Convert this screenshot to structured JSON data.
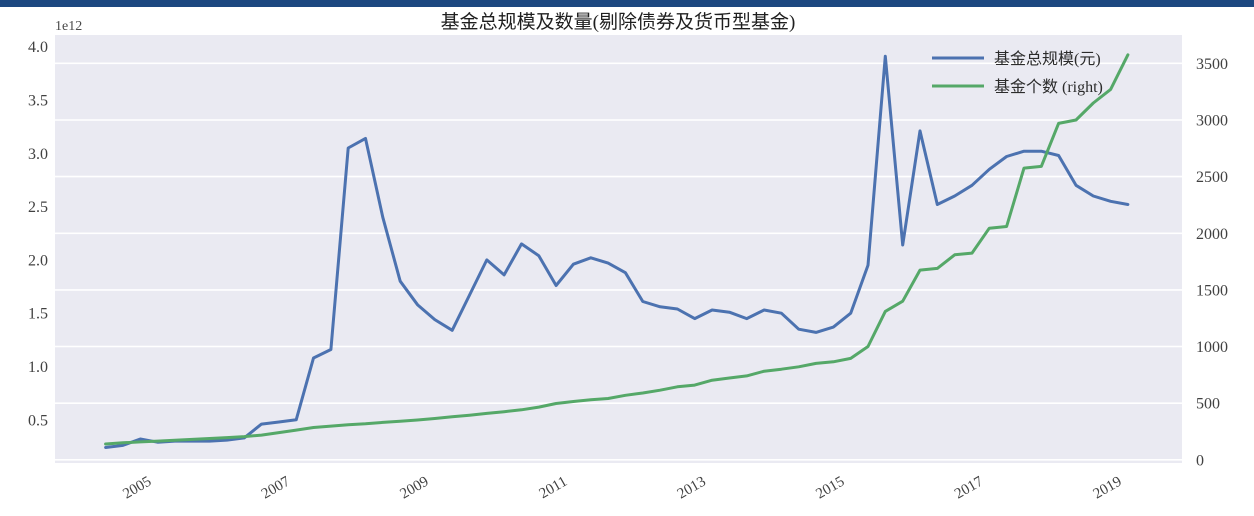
{
  "window": {
    "top_bar_color": "#1c4880"
  },
  "chart_data": {
    "type": "line",
    "title": "基金总规模及数量(剔除债券及货币型基金)",
    "background_color": "#EAEAF2",
    "gridline_color": "#FFFFFF",
    "grid": "horizontal-only, aligned to right axis ticks",
    "legend_position": "upper right",
    "x_start": 2004.5,
    "x_step_years": 0.25,
    "xlim": [
      2003.77,
      2020.03
    ],
    "left_axis": {
      "offset_label": "1e12",
      "ylim": [
        0.095,
        4.11
      ],
      "tick_values": [
        4.0,
        3.5,
        3.0,
        2.5,
        2.0,
        1.5,
        1.0,
        0.5
      ],
      "tick_labels": [
        "4.0",
        "3.5",
        "3.0",
        "2.5",
        "2.0",
        "1.5",
        "1.0",
        "0.5"
      ]
    },
    "right_axis": {
      "ylim": [
        -28,
        3750
      ],
      "tick_values": [
        3500,
        3000,
        2500,
        2000,
        1500,
        1000,
        500,
        0
      ],
      "tick_labels": [
        "3500",
        "3000",
        "2500",
        "2000",
        "1500",
        "1000",
        "500",
        "0"
      ]
    },
    "x_axis": {
      "tick_values": [
        2005,
        2007,
        2009,
        2011,
        2013,
        2015,
        2017,
        2019
      ],
      "tick_labels": [
        "2005",
        "2007",
        "2009",
        "2011",
        "2013",
        "2015",
        "2017",
        "2019"
      ]
    },
    "series": [
      {
        "id": "total_scale",
        "name": "基金总规模(元)",
        "axis": "left",
        "color": "#4C72B0",
        "values": [
          0.24,
          0.26,
          0.32,
          0.29,
          0.3,
          0.3,
          0.3,
          0.31,
          0.33,
          0.46,
          0.48,
          0.5,
          1.08,
          1.16,
          3.05,
          3.14,
          2.4,
          1.8,
          1.58,
          1.44,
          1.34,
          1.67,
          2.0,
          1.86,
          2.15,
          2.04,
          1.76,
          1.96,
          2.02,
          1.97,
          1.88,
          1.61,
          1.56,
          1.54,
          1.45,
          1.53,
          1.51,
          1.45,
          1.53,
          1.5,
          1.35,
          1.32,
          1.37,
          1.5,
          1.95,
          3.91,
          2.14,
          3.21,
          2.52,
          2.6,
          2.7,
          2.85,
          2.97,
          3.02,
          3.02,
          2.98,
          2.7,
          2.6,
          2.55,
          2.52
        ]
      },
      {
        "id": "fund_count",
        "name": "基金个数 (right)",
        "axis": "right",
        "color": "#55A868",
        "values": [
          140,
          150,
          158,
          165,
          172,
          180,
          188,
          196,
          205,
          218,
          240,
          262,
          285,
          298,
          310,
          318,
          330,
          340,
          352,
          365,
          380,
          394,
          410,
          425,
          442,
          465,
          497,
          515,
          530,
          541,
          570,
          590,
          615,
          645,
          660,
          703,
          722,
          741,
          782,
          800,
          821,
          851,
          865,
          895,
          1000,
          1310,
          1400,
          1675,
          1690,
          1810,
          1825,
          2045,
          2060,
          2575,
          2590,
          2970,
          3000,
          3150,
          3270,
          3575
        ]
      }
    ]
  }
}
